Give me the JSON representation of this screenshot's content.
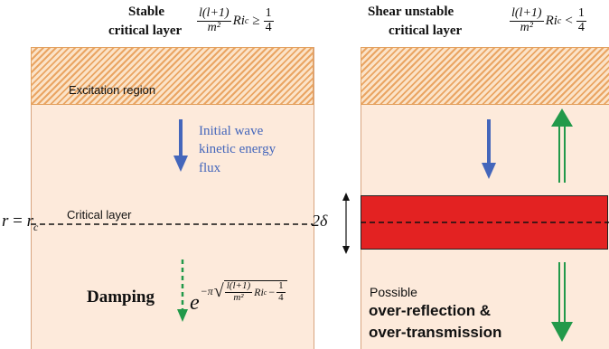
{
  "left_panel": {
    "title_line1": "Stable",
    "title_line2": "critical layer",
    "condition": {
      "num": "l(l+1)",
      "den": "m²",
      "ri": "Ri",
      "ri_sub": "c",
      "relation": "≥",
      "frac_num": "1",
      "frac_den": "4"
    },
    "excitation_label": "Excitation region",
    "flux_label_line1": "Initial wave",
    "flux_label_line2": "kinetic energy",
    "flux_label_line3": "flux",
    "critical_layer_label": "Critical layer",
    "damping_label": "Damping",
    "damping_factor": {
      "base": "e",
      "exp_sign": "−π",
      "num": "l(l+1)",
      "den": "m²",
      "ri": "Ri",
      "ri_sub": "c",
      "minus": "−",
      "frac_num": "1",
      "frac_den": "4"
    }
  },
  "right_panel": {
    "title_line1": "Shear unstable",
    "title_line2": "critical layer",
    "condition": {
      "num": "l(l+1)",
      "den": "m²",
      "ri": "Ri",
      "ri_sub": "c",
      "relation": "<",
      "frac_num": "1",
      "frac_den": "4"
    },
    "thickness_label": "2δ",
    "possible_label": "Possible",
    "outcome_line1": "over-reflection &",
    "outcome_line2": "over-transmission"
  },
  "radius_label": {
    "r": "r",
    "equals": "=",
    "rc": "r",
    "rc_sub": "c"
  },
  "colors": {
    "panel_fill": "#fdeadb",
    "hatch": "#eaa563",
    "incident_arrow": "#4466bb",
    "transmitted_arrow": "#22994a",
    "shear_band": "#e32222",
    "flux_text": "#4466bb"
  }
}
